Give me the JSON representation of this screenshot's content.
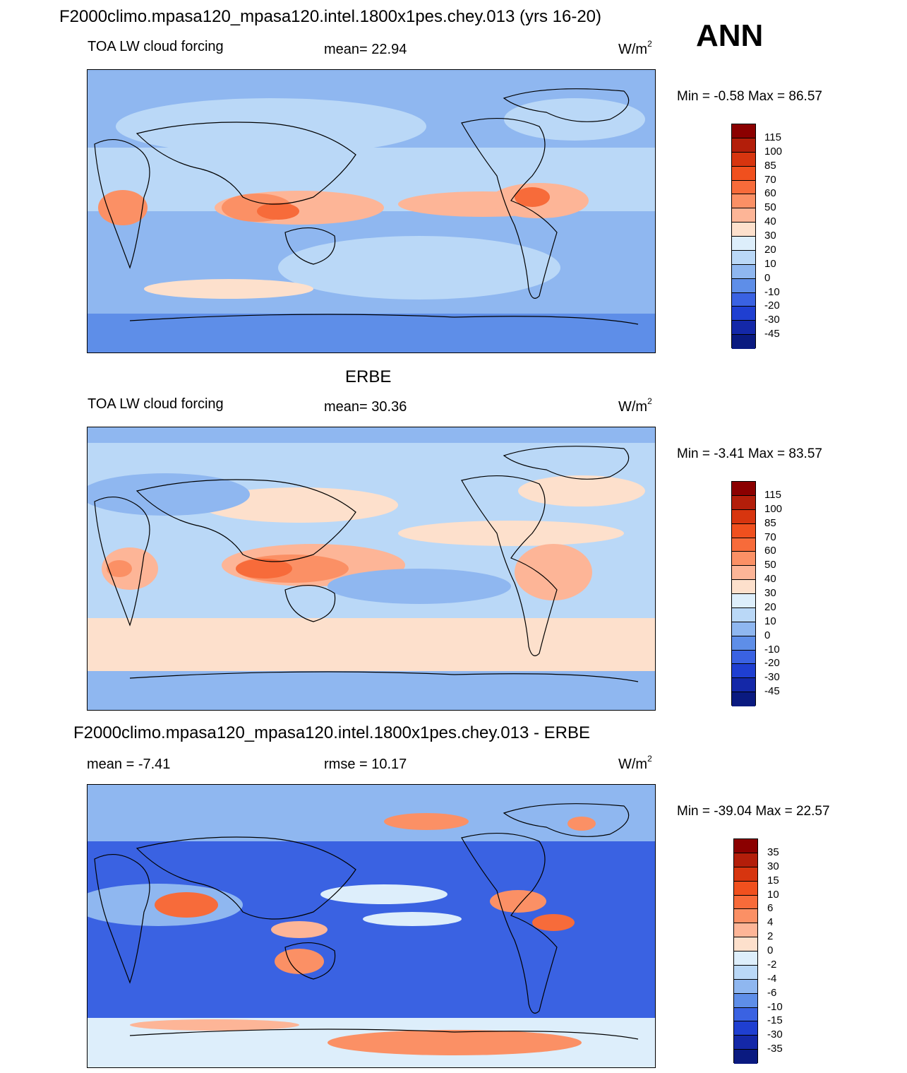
{
  "title": "F2000climo.mpasa120_mpasa120.intel.1800x1pes.chey.013 (yrs 16-20)",
  "season": "ANN",
  "units_base": "W/m",
  "units_exp": "2",
  "chart_data": [
    {
      "type": "heatmap",
      "panel_title": "",
      "variable": "TOA LW cloud forcing",
      "mean_label": "mean=  22.94",
      "min_max_label": "Min =  -0.58 Max =  86.57",
      "legend_levels": [
        "115",
        "100",
        "85",
        "70",
        "60",
        "50",
        "40",
        "30",
        "20",
        "10",
        "0",
        "-10",
        "-20",
        "-30",
        "-45"
      ],
      "legend_colors": [
        "#8b0000",
        "#b31e0a",
        "#d7350f",
        "#f0501e",
        "#f76b3a",
        "#fb9065",
        "#fdb597",
        "#fde0cc",
        "#ddeefb",
        "#bad8f7",
        "#8fb7f0",
        "#5e8ee8",
        "#3a62e2",
        "#1f3fd1",
        "#1428a8",
        "#0a1a80"
      ]
    },
    {
      "type": "heatmap",
      "panel_title": "ERBE",
      "variable": "TOA LW cloud forcing",
      "mean_label": "mean=  30.36",
      "min_max_label": "Min =  -3.41 Max =  83.57",
      "legend_levels": [
        "115",
        "100",
        "85",
        "70",
        "60",
        "50",
        "40",
        "30",
        "20",
        "10",
        "0",
        "-10",
        "-20",
        "-30",
        "-45"
      ],
      "legend_colors": [
        "#8b0000",
        "#b31e0a",
        "#d7350f",
        "#f0501e",
        "#f76b3a",
        "#fb9065",
        "#fdb597",
        "#fde0cc",
        "#ddeefb",
        "#bad8f7",
        "#8fb7f0",
        "#5e8ee8",
        "#3a62e2",
        "#1f3fd1",
        "#1428a8",
        "#0a1a80"
      ]
    },
    {
      "type": "heatmap",
      "panel_title": "F2000climo.mpasa120_mpasa120.intel.1800x1pes.chey.013 - ERBE",
      "mean_label": "mean =  -7.41",
      "rmse_label": "rmse =  10.17",
      "min_max_label": "Min = -39.04 Max =  22.57",
      "legend_levels": [
        "35",
        "30",
        "15",
        "10",
        "6",
        "4",
        "2",
        "0",
        "-2",
        "-4",
        "-6",
        "-10",
        "-15",
        "-30",
        "-35"
      ],
      "legend_colors": [
        "#8b0000",
        "#b31e0a",
        "#d7350f",
        "#f0501e",
        "#f76b3a",
        "#fb9065",
        "#fdb597",
        "#fde0cc",
        "#ddeefb",
        "#bad8f7",
        "#8fb7f0",
        "#5e8ee8",
        "#3a62e2",
        "#1f3fd1",
        "#1428a8",
        "#0a1a80"
      ]
    }
  ],
  "palette": {
    "background_p1": "#8fb7f0",
    "background_p2": "#bad8f7",
    "background_p3": "#3a62e2",
    "coast": "#000000"
  }
}
